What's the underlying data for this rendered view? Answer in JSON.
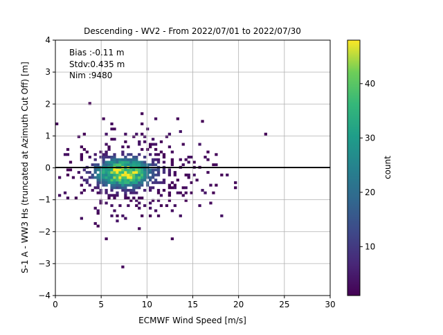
{
  "chart_data": {
    "type": "heatmap",
    "title": "Descending - WV2 - From 2022/07/01 to 2022/07/30",
    "xlabel": "ECMWF Wind Speed [m/s]",
    "ylabel": "S-1 A - WW3 Hs (truncated at Azimuth Cut Off) [m]",
    "xlim": [
      0,
      30
    ],
    "ylim": [
      -4,
      4
    ],
    "x_ticks": [
      "0",
      "5",
      "10",
      "15",
      "20",
      "25",
      "30"
    ],
    "y_ticks": [
      "−4",
      "−3",
      "−2",
      "−1",
      "0",
      "1",
      "2",
      "3",
      "4"
    ],
    "grid": true,
    "reference_line": {
      "y": 0,
      "color": "#000000"
    },
    "annotations": [
      "Bias :-0.11 m",
      "Stdv:0.435 m",
      "Nim :9480"
    ],
    "colorbar": {
      "label": "count",
      "colormap": "viridis",
      "range": [
        1,
        48
      ],
      "ticks": [
        "10",
        "20",
        "30",
        "40"
      ]
    },
    "density_summary": {
      "peak_wind_speed": 7.5,
      "peak_hs_difference": -0.15,
      "peak_count": 48
    }
  }
}
